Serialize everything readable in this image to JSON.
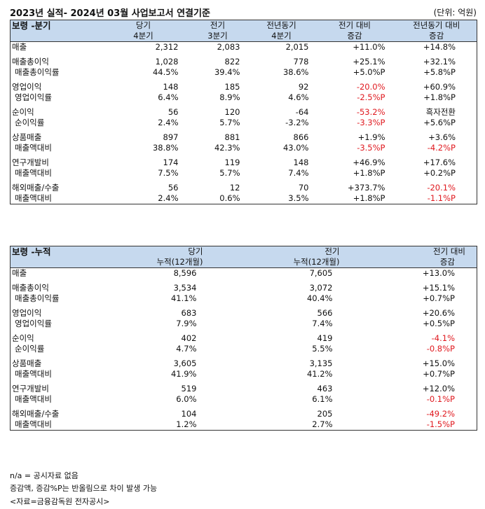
{
  "title": "2023년 실적- 2024년 03월 사업보고서 연결기준",
  "unit": "(단위: 억원)",
  "quarterly": {
    "heading": "보령 -분기",
    "cols": [
      {
        "l1": "당기",
        "l2": "4분기"
      },
      {
        "l1": "전기",
        "l2": "3분기"
      },
      {
        "l1": "전년동기",
        "l2": "4분기"
      },
      {
        "l1": "전기 대비",
        "l2": "증감"
      },
      {
        "l1": "전년동기 대비",
        "l2": "증감"
      }
    ],
    "groups": [
      {
        "rows": [
          {
            "label": "매출",
            "v": [
              "2,312",
              "2,083",
              "2,015",
              "+11.0%",
              "+14.8%"
            ]
          }
        ]
      },
      {
        "rows": [
          {
            "label": "매출총이익",
            "v": [
              "1,028",
              "822",
              "778",
              "+25.1%",
              "+32.1%"
            ]
          },
          {
            "label": "매출총이익률",
            "v": [
              "44.5%",
              "39.4%",
              "38.6%",
              "+5.0%P",
              "+5.8%P"
            ]
          }
        ]
      },
      {
        "rows": [
          {
            "label": "영업이익",
            "v": [
              "148",
              "185",
              "92",
              "-20.0%",
              "+60.9%"
            ]
          },
          {
            "label": "영업이익률",
            "v": [
              "6.4%",
              "8.9%",
              "4.6%",
              "-2.5%P",
              "+1.8%P"
            ]
          }
        ]
      },
      {
        "rows": [
          {
            "label": "순이익",
            "v": [
              "56",
              "120",
              "-64",
              "-53.2%",
              "흑자전환"
            ]
          },
          {
            "label": "순이익률",
            "v": [
              "2.4%",
              "5.7%",
              "-3.2%",
              "-3.3%P",
              "+5.6%P"
            ]
          }
        ]
      },
      {
        "rows": [
          {
            "label": "상품매출",
            "v": [
              "897",
              "881",
              "866",
              "+1.9%",
              "+3.6%"
            ]
          },
          {
            "label": "매출액대비",
            "v": [
              "38.8%",
              "42.3%",
              "43.0%",
              "-3.5%P",
              "-4.2%P"
            ]
          }
        ]
      },
      {
        "rows": [
          {
            "label": "연구개발비",
            "v": [
              "174",
              "119",
              "148",
              "+46.9%",
              "+17.6%"
            ]
          },
          {
            "label": "매출액대비",
            "v": [
              "7.5%",
              "5.7%",
              "7.4%",
              "+1.8%P",
              "+0.2%P"
            ]
          }
        ]
      },
      {
        "rows": [
          {
            "label": "해외매출/수출",
            "v": [
              "56",
              "12",
              "70",
              "+373.7%",
              "-20.1%"
            ]
          },
          {
            "label": "매출액대비",
            "v": [
              "2.4%",
              "0.6%",
              "3.5%",
              "+1.8%P",
              "-1.1%P"
            ]
          }
        ]
      }
    ]
  },
  "cumulative": {
    "heading": "보령 -누적",
    "cols": [
      {
        "l1": "당기",
        "l2": "누적(12개월)"
      },
      {
        "l1": "전기",
        "l2": "누적(12개월)"
      },
      {
        "l1": "전기 대비",
        "l2": "증감"
      }
    ],
    "groups": [
      {
        "rows": [
          {
            "label": "매출",
            "v": [
              "8,596",
              "7,605",
              "+13.0%"
            ]
          }
        ]
      },
      {
        "rows": [
          {
            "label": "매출총이익",
            "v": [
              "3,534",
              "3,072",
              "+15.1%"
            ]
          },
          {
            "label": "매출총이익률",
            "v": [
              "41.1%",
              "40.4%",
              "+0.7%P"
            ]
          }
        ]
      },
      {
        "rows": [
          {
            "label": "영업이익",
            "v": [
              "683",
              "566",
              "+20.6%"
            ]
          },
          {
            "label": "영업이익률",
            "v": [
              "7.9%",
              "7.4%",
              "+0.5%P"
            ]
          }
        ]
      },
      {
        "rows": [
          {
            "label": "순이익",
            "v": [
              "402",
              "419",
              "-4.1%"
            ]
          },
          {
            "label": "순이익률",
            "v": [
              "4.7%",
              "5.5%",
              "-0.8%P"
            ]
          }
        ]
      },
      {
        "rows": [
          {
            "label": "상품매출",
            "v": [
              "3,605",
              "3,135",
              "+15.0%"
            ]
          },
          {
            "label": "매출액대비",
            "v": [
              "41.9%",
              "41.2%",
              "+0.7%P"
            ]
          }
        ]
      },
      {
        "rows": [
          {
            "label": "연구개발비",
            "v": [
              "519",
              "463",
              "+12.0%"
            ]
          },
          {
            "label": "매출액대비",
            "v": [
              "6.0%",
              "6.1%",
              "-0.1%P"
            ]
          }
        ]
      },
      {
        "rows": [
          {
            "label": "해외매출/수출",
            "v": [
              "104",
              "205",
              "-49.2%"
            ]
          },
          {
            "label": "매출액대비",
            "v": [
              "1.2%",
              "2.7%",
              "-1.5%P"
            ]
          }
        ]
      }
    ]
  },
  "footnotes": [
    "n/a = 공시자료 없음",
    "증감액, 증감%P는 반올림으로 차이 발생 가능",
    "<자료=금융감독원 전자공시>"
  ],
  "colors": {
    "header_bg": "#c6d9ee",
    "negative": "#e0191f"
  }
}
